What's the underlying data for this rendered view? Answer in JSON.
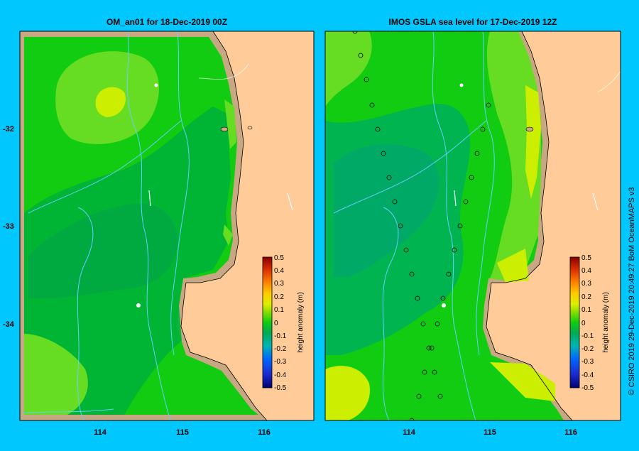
{
  "panels": [
    {
      "title": "OM_an01  for 18-Dec-2019 00Z",
      "colorbar": {
        "label": "height anomaly (m)",
        "ticks": [
          "0.5",
          "0.4",
          "0.3",
          "0.2",
          "0.1",
          "0",
          "-0.1",
          "-0.2",
          "-0.3",
          "-0.4",
          "-0.5"
        ]
      }
    },
    {
      "title": "IMOS GSLA sea level  for 17-Dec-2019 12Z",
      "colorbar": {
        "label": "height anomaly (m)",
        "ticks": [
          "0.5",
          "0.4",
          "0.3",
          "0.2",
          "0.1",
          "0",
          "-0.1",
          "-0.2",
          "-0.3",
          "-0.4",
          "-0.5"
        ]
      }
    }
  ],
  "axes": {
    "y_ticks": [
      "-32",
      "-33",
      "-34"
    ],
    "x_ticks": [
      "114",
      "115",
      "116"
    ]
  },
  "credit": "© CSIRO 2019   29-Dec-2019 20:49:27 BoM OceanMAPS v3",
  "colors": {
    "background": "#00c8ff",
    "land": "#ffcc99",
    "coast_shelf": "#c8a882",
    "sea_base": "#11cc11",
    "anomaly_low": "#00aa44",
    "anomaly_high": "#bbee00",
    "track": "#66ccff"
  }
}
